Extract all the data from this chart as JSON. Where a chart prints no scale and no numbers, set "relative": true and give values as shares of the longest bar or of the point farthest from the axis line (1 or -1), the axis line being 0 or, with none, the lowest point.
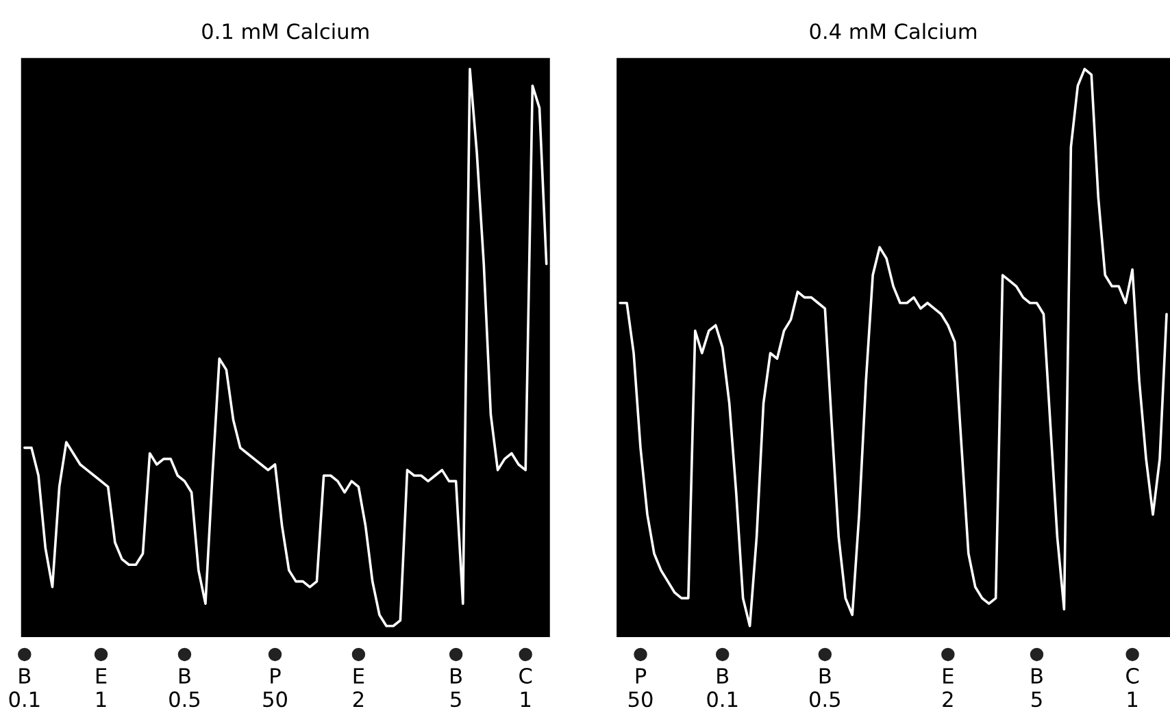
{
  "chart_data": [
    {
      "type": "line",
      "title": "0.1 mM Calcium",
      "relative": true,
      "tick_labels": "x",
      "grid": false,
      "legend": false,
      "marker": "none",
      "line_style": "solid",
      "categories": [
        "B\n0.1",
        null,
        null,
        null,
        null,
        null,
        null,
        null,
        null,
        null,
        null,
        "E\n1",
        null,
        null,
        null,
        null,
        null,
        null,
        null,
        null,
        null,
        null,
        null,
        "B\n0.5",
        null,
        null,
        null,
        null,
        null,
        null,
        null,
        null,
        null,
        null,
        null,
        null,
        "P\n50",
        null,
        null,
        null,
        null,
        null,
        null,
        null,
        null,
        null,
        null,
        null,
        "E\n2",
        null,
        null,
        null,
        null,
        null,
        null,
        null,
        null,
        null,
        null,
        null,
        null,
        null,
        "B\n5",
        null,
        null,
        null,
        null,
        null,
        null,
        null,
        null,
        null,
        "C\n1",
        null,
        null,
        null
      ],
      "series": [
        {
          "color": "#ffffff",
          "values": [
            0.32,
            0.32,
            0.27,
            0.14,
            0.07,
            0.25,
            0.33,
            0.31,
            0.29,
            0.28,
            0.27,
            0.26,
            0.25,
            0.15,
            0.12,
            0.11,
            0.11,
            0.13,
            0.31,
            0.29,
            0.3,
            0.3,
            0.27,
            0.26,
            0.24,
            0.1,
            0.04,
            0.27,
            0.48,
            0.46,
            0.37,
            0.32,
            0.31,
            0.3,
            0.29,
            0.28,
            0.29,
            0.18,
            0.1,
            0.08,
            0.08,
            0.07,
            0.08,
            0.27,
            0.27,
            0.26,
            0.24,
            0.26,
            0.25,
            0.18,
            0.08,
            0.02,
            0,
            0,
            0.01,
            0.28,
            0.27,
            0.27,
            0.26,
            0.27,
            0.28,
            0.26,
            0.26,
            0.04,
            1,
            0.85,
            0.65,
            0.38,
            0.28,
            0.3,
            0.31,
            0.29,
            0.28,
            0.97,
            0.93,
            0.65
          ]
        }
      ]
    },
    {
      "type": "line",
      "title": "0.4 mM Calcium",
      "relative": true,
      "tick_labels": "x",
      "grid": false,
      "legend": false,
      "marker": "none",
      "line_style": "solid",
      "categories": [
        null,
        null,
        null,
        "P\n50",
        null,
        null,
        null,
        null,
        null,
        null,
        null,
        null,
        null,
        null,
        null,
        "B\n0.1",
        null,
        null,
        null,
        null,
        null,
        null,
        null,
        null,
        null,
        null,
        null,
        null,
        null,
        null,
        "B\n0.5",
        null,
        null,
        null,
        null,
        null,
        null,
        null,
        null,
        null,
        null,
        null,
        null,
        null,
        null,
        null,
        null,
        null,
        "E\n2",
        null,
        null,
        null,
        null,
        null,
        null,
        null,
        null,
        null,
        null,
        null,
        null,
        "B\n5",
        null,
        null,
        null,
        null,
        null,
        null,
        null,
        null,
        null,
        null,
        null,
        null,
        null,
        "C\n1",
        null,
        null,
        null,
        null,
        null
      ],
      "series": [
        {
          "color": "#ffffff",
          "values": [
            0.58,
            0.58,
            0.49,
            0.32,
            0.2,
            0.13,
            0.1,
            0.08,
            0.06,
            0.05,
            0.05,
            0.53,
            0.49,
            0.53,
            0.54,
            0.5,
            0.4,
            0.24,
            0.05,
            0,
            0.16,
            0.4,
            0.49,
            0.48,
            0.53,
            0.55,
            0.6,
            0.59,
            0.59,
            0.58,
            0.57,
            0.36,
            0.16,
            0.05,
            0.02,
            0.2,
            0.44,
            0.63,
            0.68,
            0.66,
            0.61,
            0.58,
            0.58,
            0.59,
            0.57,
            0.58,
            0.57,
            0.56,
            0.54,
            0.51,
            0.32,
            0.13,
            0.07,
            0.05,
            0.04,
            0.05,
            0.63,
            0.62,
            0.61,
            0.59,
            0.58,
            0.58,
            0.56,
            0.36,
            0.16,
            0.03,
            0.86,
            0.97,
            1,
            0.99,
            0.77,
            0.63,
            0.61,
            0.61,
            0.58,
            0.64,
            0.44,
            0.3,
            0.2,
            0.3,
            0.56
          ]
        }
      ]
    }
  ]
}
